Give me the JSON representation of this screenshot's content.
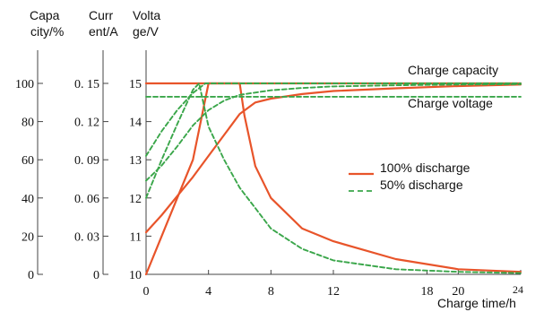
{
  "chart_data": {
    "type": "line",
    "title": "",
    "axes": {
      "capacity": {
        "label_line1": "Capa",
        "label_line2": "city/%",
        "ticks": [
          "0",
          "20",
          "40",
          "60",
          "80",
          "100"
        ],
        "range": [
          0,
          100
        ]
      },
      "current": {
        "label_line1": "Curr",
        "label_line2": "ent/A",
        "ticks": [
          "0",
          "0. 03",
          "0. 06",
          "0. 09",
          "0. 12",
          "0. 15"
        ],
        "range": [
          0,
          0.15
        ]
      },
      "voltage": {
        "label_line1": "Volta",
        "label_line2": "ge/V",
        "ticks": [
          "10",
          "11",
          "12",
          "13",
          "14",
          "15"
        ],
        "range": [
          10,
          15
        ]
      },
      "x": {
        "label": "Charge time/h",
        "ticks": [
          "0",
          "4",
          "8",
          "12",
          "18",
          "20",
          "24"
        ],
        "tick_values": [
          0,
          4,
          8,
          12,
          18,
          20,
          24
        ]
      }
    },
    "grid": false,
    "legend": {
      "placement": "right",
      "items": [
        {
          "name": "100% discharge",
          "style": "solid",
          "color": "#e8542a"
        },
        {
          "name": "50% discharge",
          "style": "dashed",
          "color": "#3aa64a"
        }
      ]
    },
    "annotations": [
      {
        "text": "Charge capacity",
        "target": "capacity curves"
      },
      {
        "text": "Charge voltage",
        "target": "voltage curves"
      }
    ],
    "series": [
      {
        "group": "100% discharge",
        "quantity": "voltage",
        "axis": "voltage",
        "x": [
          0,
          1,
          2,
          3,
          4,
          5,
          6,
          7,
          8,
          10,
          12,
          16,
          20,
          24
        ],
        "y": [
          11.1,
          11.55,
          12.05,
          12.55,
          13.1,
          13.65,
          14.2,
          14.5,
          14.6,
          14.72,
          14.8,
          14.87,
          14.93,
          14.97
        ]
      },
      {
        "group": "100% discharge",
        "quantity": "current",
        "axis": "current",
        "x": [
          0,
          1,
          2,
          3,
          4,
          5,
          6,
          6.3,
          7,
          8,
          10,
          12,
          16,
          20,
          24
        ],
        "y": [
          0,
          0.03,
          0.06,
          0.09,
          0.15,
          0.15,
          0.15,
          0.125,
          0.085,
          0.06,
          0.036,
          0.026,
          0.012,
          0.004,
          0.002
        ]
      },
      {
        "group": "100% discharge",
        "quantity": "capacity",
        "axis": "capacity",
        "x": [
          0,
          2,
          4,
          6,
          8,
          12,
          16,
          20,
          24
        ],
        "y": [
          100,
          100,
          100,
          100,
          100,
          100,
          100,
          100,
          100
        ]
      },
      {
        "group": "50% discharge",
        "quantity": "voltage",
        "axis": "voltage",
        "x": [
          0,
          1,
          2,
          3,
          4,
          5,
          6,
          8,
          10,
          12,
          16,
          20,
          24
        ],
        "y": [
          12.45,
          12.85,
          13.35,
          13.9,
          14.3,
          14.55,
          14.7,
          14.82,
          14.88,
          14.92,
          14.95,
          14.97,
          14.98
        ]
      },
      {
        "group": "50% discharge",
        "quantity": "current",
        "axis": "current",
        "x": [
          0,
          1,
          2,
          3,
          3.4,
          4,
          5,
          6,
          8,
          10,
          12,
          16,
          20,
          24
        ],
        "y": [
          0.06,
          0.09,
          0.118,
          0.145,
          0.15,
          0.116,
          0.09,
          0.068,
          0.036,
          0.02,
          0.011,
          0.004,
          0.002,
          0.001
        ]
      },
      {
        "group": "50% discharge",
        "quantity": "capacity",
        "axis": "capacity",
        "x": [
          0,
          1,
          2,
          3,
          3.8,
          4.5,
          6,
          8,
          12,
          16,
          20,
          24
        ],
        "y": [
          62,
          75,
          86,
          95,
          100,
          100,
          100,
          100,
          100,
          100,
          100,
          100
        ]
      },
      {
        "group": "50% discharge",
        "quantity": "voltage_level",
        "axis": "voltage",
        "x": [
          0,
          24
        ],
        "y": [
          14.65,
          14.65
        ]
      }
    ]
  }
}
